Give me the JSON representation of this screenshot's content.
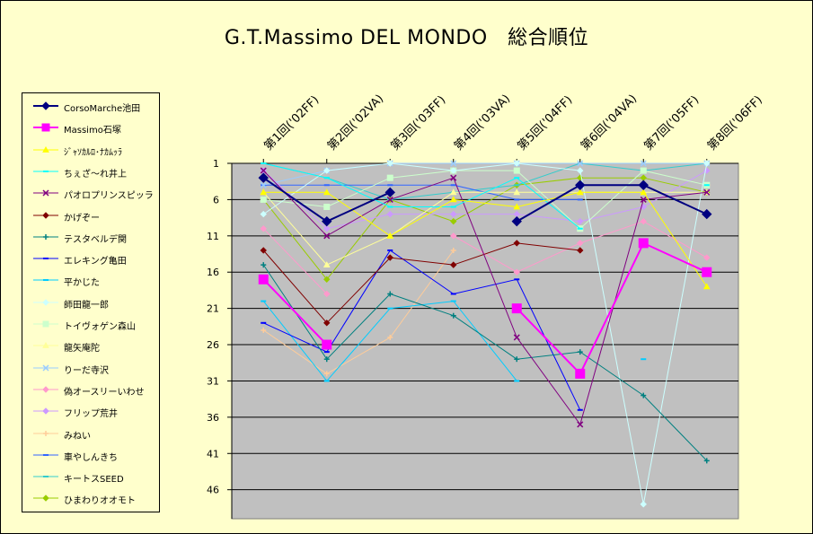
{
  "chart_data": {
    "type": "line",
    "title": "G.T.Massimo DEL MONDO　総合順位",
    "categories": [
      "第1回('02FF)",
      "第2回('02VA)",
      "第3回('03FF)",
      "第4回('03VA)",
      "第5回('04FF)",
      "第6回('04VA)",
      "第7回('05FF)",
      "第8回('06FF)"
    ],
    "y_ticks": [
      "1",
      "6",
      "11",
      "16",
      "21",
      "26",
      "31",
      "36",
      "41",
      "46"
    ],
    "ylim": [
      1,
      50
    ],
    "y_axis_reversed": true,
    "grid": true,
    "legend_position": "left",
    "plot_background": "#c0c0c0",
    "series": [
      {
        "name": "CorsoMarche池田",
        "color": "#000080",
        "marker": "diamond",
        "width": 2,
        "values": [
          3,
          9,
          5,
          null,
          9,
          4,
          4,
          8
        ]
      },
      {
        "name": "Massimo石塚",
        "color": "#ff00ff",
        "marker": "square",
        "width": 2,
        "values": [
          17,
          26,
          null,
          null,
          21,
          30,
          12,
          16
        ]
      },
      {
        "name": "ｼﾞｬｿｶﾙﾛ･ﾅｶﾑｯﾗ",
        "color": "#ffff00",
        "marker": "triangle",
        "width": 1,
        "values": [
          5,
          5,
          11,
          6,
          7,
          5,
          5,
          18
        ]
      },
      {
        "name": "ちぇざ～れ井上",
        "color": "#00ffff",
        "marker": "dash",
        "width": 1,
        "values": [
          1,
          3,
          7,
          7,
          3,
          10,
          null,
          4
        ]
      },
      {
        "name": "パオロプリンスピッラ",
        "color": "#800080",
        "marker": "cross",
        "width": 1,
        "values": [
          2,
          11,
          6,
          3,
          25,
          37,
          6,
          5
        ]
      },
      {
        "name": "かげぞー",
        "color": "#800000",
        "marker": "diamond",
        "width": 1,
        "values": [
          13,
          23,
          14,
          15,
          12,
          13,
          null,
          null
        ]
      },
      {
        "name": "テスタベルデ関",
        "color": "#008080",
        "marker": "plus",
        "width": 1,
        "values": [
          15,
          28,
          19,
          22,
          28,
          27,
          33,
          42
        ]
      },
      {
        "name": "エレキング亀田",
        "color": "#0000ff",
        "marker": "dash",
        "width": 1,
        "values": [
          23,
          27,
          13,
          19,
          17,
          35,
          null,
          null
        ]
      },
      {
        "name": "平かじた",
        "color": "#00ccff",
        "marker": "dash",
        "width": 1,
        "values": [
          20,
          31,
          21,
          20,
          31,
          null,
          28,
          null
        ]
      },
      {
        "name": "師田龍一郎",
        "color": "#ccffff",
        "marker": "diamond",
        "width": 1,
        "values": [
          8,
          2,
          1,
          2,
          1,
          2,
          48,
          1
        ]
      },
      {
        "name": "トイヴォゲン森山",
        "color": "#ccffcc",
        "marker": "square",
        "width": 1,
        "values": [
          6,
          7,
          3,
          2,
          2,
          10,
          2,
          4
        ]
      },
      {
        "name": "龍矢庵陀",
        "color": "#ffff99",
        "marker": "triangle",
        "width": 1,
        "values": [
          5,
          15,
          11,
          5,
          5,
          5,
          5,
          5
        ]
      },
      {
        "name": "りーだ寺沢",
        "color": "#99ccff",
        "marker": "cross",
        "width": 1,
        "values": [
          4,
          2,
          1,
          1,
          1,
          1,
          1,
          1
        ]
      },
      {
        "name": "偽オースリーいわせ",
        "color": "#ff99cc",
        "marker": "diamond",
        "width": 1,
        "values": [
          10,
          19,
          null,
          11,
          16,
          12,
          9,
          14
        ]
      },
      {
        "name": "フリップ荒井",
        "color": "#cc99ff",
        "marker": "diamond",
        "width": 1,
        "values": [
          2,
          10,
          8,
          8,
          8,
          9,
          7,
          2
        ]
      },
      {
        "name": "みねい",
        "color": "#ffcc99",
        "marker": "plus",
        "width": 1,
        "values": [
          24,
          30,
          25,
          13,
          null,
          null,
          null,
          null
        ]
      },
      {
        "name": "車やしんきち",
        "color": "#3366ff",
        "marker": "dash",
        "width": 1,
        "values": [
          4,
          4,
          4,
          4,
          6,
          6,
          null,
          null
        ]
      },
      {
        "name": "キートスSEED",
        "color": "#33cccc",
        "marker": "dash",
        "width": 1,
        "values": [
          1,
          3,
          6,
          5,
          4,
          1,
          2,
          1
        ]
      },
      {
        "name": "ひまわりオオモト",
        "color": "#99cc00",
        "marker": "diamond",
        "width": 1,
        "values": [
          6,
          17,
          6,
          9,
          4,
          3,
          3,
          5
        ]
      }
    ]
  }
}
